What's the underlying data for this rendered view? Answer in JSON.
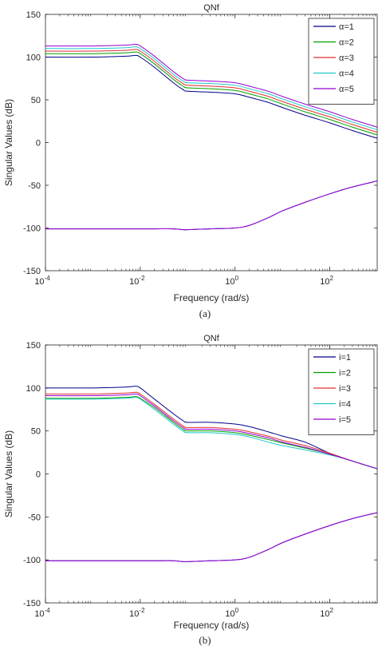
{
  "chart_data": [
    {
      "type": "line",
      "title": "QNf",
      "xlabel": "Frequency (rad/s)",
      "ylabel": "Singular Values (dB)",
      "caption": "(a)",
      "xscale": "log",
      "xlim": [
        0.0001,
        1000
      ],
      "ylim": [
        -150,
        150
      ],
      "grid": false,
      "legend_position": "top-right",
      "x_ticks": [
        {
          "value": 0.0001,
          "base": "10",
          "exp": "-4"
        },
        {
          "value": 0.01,
          "base": "10",
          "exp": "-2"
        },
        {
          "value": 1,
          "base": "10",
          "exp": "0"
        },
        {
          "value": 100,
          "base": "10",
          "exp": "2"
        }
      ],
      "y_ticks": [
        "150",
        "100",
        "50",
        "0",
        "-50",
        "-100",
        "-150"
      ],
      "x": [
        0.0001,
        0.001,
        0.005,
        0.008,
        0.01,
        0.02,
        0.05,
        0.08,
        0.1,
        0.3,
        1,
        2,
        5,
        10,
        30,
        100,
        300,
        1000
      ],
      "series": [
        {
          "name": "α=1",
          "color": "#00008b",
          "values": [
            100,
            100,
            101,
            102,
            100,
            88,
            70,
            62,
            60,
            59,
            57,
            53,
            47,
            41,
            32,
            23,
            14,
            5
          ]
        },
        {
          "name": "α=2",
          "color": "#00a000",
          "values": [
            104,
            104,
            105,
            106,
            104,
            92,
            74,
            66,
            64,
            63,
            61,
            57,
            51,
            45,
            36,
            27,
            18,
            9
          ]
        },
        {
          "name": "α=3",
          "color": "#e03030",
          "values": [
            107,
            107,
            108,
            109,
            107,
            95,
            77,
            69,
            67,
            66,
            64,
            60,
            54,
            48,
            39,
            30,
            21,
            12
          ]
        },
        {
          "name": "α=4",
          "color": "#20c8c8",
          "values": [
            110,
            110,
            111,
            112,
            110,
            98,
            80,
            72,
            70,
            69,
            67,
            63,
            57,
            51,
            42,
            33,
            24,
            15
          ]
        },
        {
          "name": "α=5",
          "color": "#9400d3",
          "values": [
            113,
            113,
            114,
            115,
            113,
            101,
            83,
            75,
            73,
            72,
            70,
            66,
            60,
            54,
            45,
            36,
            27,
            18
          ]
        }
      ],
      "lower_series": [
        {
          "color": "#00008b",
          "values": [
            -101,
            -101,
            -101,
            -101,
            -101,
            -101,
            -101,
            -102,
            -102,
            -101,
            -100,
            -97,
            -88,
            -80,
            -70,
            -60,
            -52,
            -45
          ]
        },
        {
          "color": "#9400d3",
          "values": [
            -101,
            -101,
            -101,
            -101,
            -101,
            -101,
            -101,
            -102,
            -102,
            -101,
            -100,
            -97,
            -88,
            -80,
            -70,
            -60,
            -52,
            -45
          ]
        }
      ]
    },
    {
      "type": "line",
      "title": "QNf",
      "xlabel": "Frequency (rad/s)",
      "ylabel": "Singular Values (dB)",
      "caption": "(b)",
      "xscale": "log",
      "xlim": [
        0.0001,
        1000
      ],
      "ylim": [
        -150,
        150
      ],
      "grid": false,
      "legend_position": "top-right",
      "x_ticks": [
        {
          "value": 0.0001,
          "base": "10",
          "exp": "-4"
        },
        {
          "value": 0.01,
          "base": "10",
          "exp": "-2"
        },
        {
          "value": 1,
          "base": "10",
          "exp": "0"
        },
        {
          "value": 100,
          "base": "10",
          "exp": "2"
        }
      ],
      "y_ticks": [
        "150",
        "100",
        "50",
        "0",
        "-50",
        "-100",
        "-150"
      ],
      "x": [
        0.0001,
        0.001,
        0.005,
        0.008,
        0.01,
        0.02,
        0.05,
        0.08,
        0.1,
        0.3,
        1,
        2,
        5,
        10,
        30,
        100,
        300,
        1000
      ],
      "series": [
        {
          "name": "i=1",
          "color": "#00008b",
          "values": [
            100,
            100,
            101,
            102,
            100,
            87,
            70,
            62,
            60,
            60,
            58,
            55,
            49,
            44,
            37,
            24,
            15,
            6
          ]
        },
        {
          "name": "i=2",
          "color": "#00a000",
          "values": [
            88,
            88,
            89,
            90,
            88,
            77,
            60,
            52,
            50,
            50,
            48,
            45,
            40,
            36,
            30,
            23,
            15,
            6
          ]
        },
        {
          "name": "i=3",
          "color": "#e03030",
          "values": [
            93,
            93,
            94,
            95,
            93,
            81,
            64,
            56,
            54,
            54,
            52,
            49,
            44,
            39,
            33,
            24,
            15,
            6
          ]
        },
        {
          "name": "i=4",
          "color": "#20c8c8",
          "values": [
            87,
            87,
            88,
            89,
            87,
            75,
            58,
            50,
            48,
            48,
            46,
            43,
            37,
            33,
            28,
            22,
            15,
            6
          ]
        },
        {
          "name": "i=5",
          "color": "#9400d3",
          "values": [
            91,
            91,
            92,
            93,
            91,
            79,
            62,
            54,
            52,
            52,
            50,
            47,
            42,
            37,
            31,
            23,
            15,
            6
          ]
        }
      ],
      "lower_series": [
        {
          "color": "#00008b",
          "values": [
            -101,
            -101,
            -101,
            -101,
            -101,
            -101,
            -101,
            -102,
            -102,
            -101,
            -100,
            -97,
            -88,
            -80,
            -70,
            -60,
            -52,
            -45
          ]
        },
        {
          "color": "#9400d3",
          "values": [
            -101,
            -101,
            -101,
            -101,
            -101,
            -101,
            -101,
            -102,
            -102,
            -101,
            -100,
            -97,
            -88,
            -80,
            -70,
            -60,
            -52,
            -45
          ]
        }
      ]
    }
  ]
}
